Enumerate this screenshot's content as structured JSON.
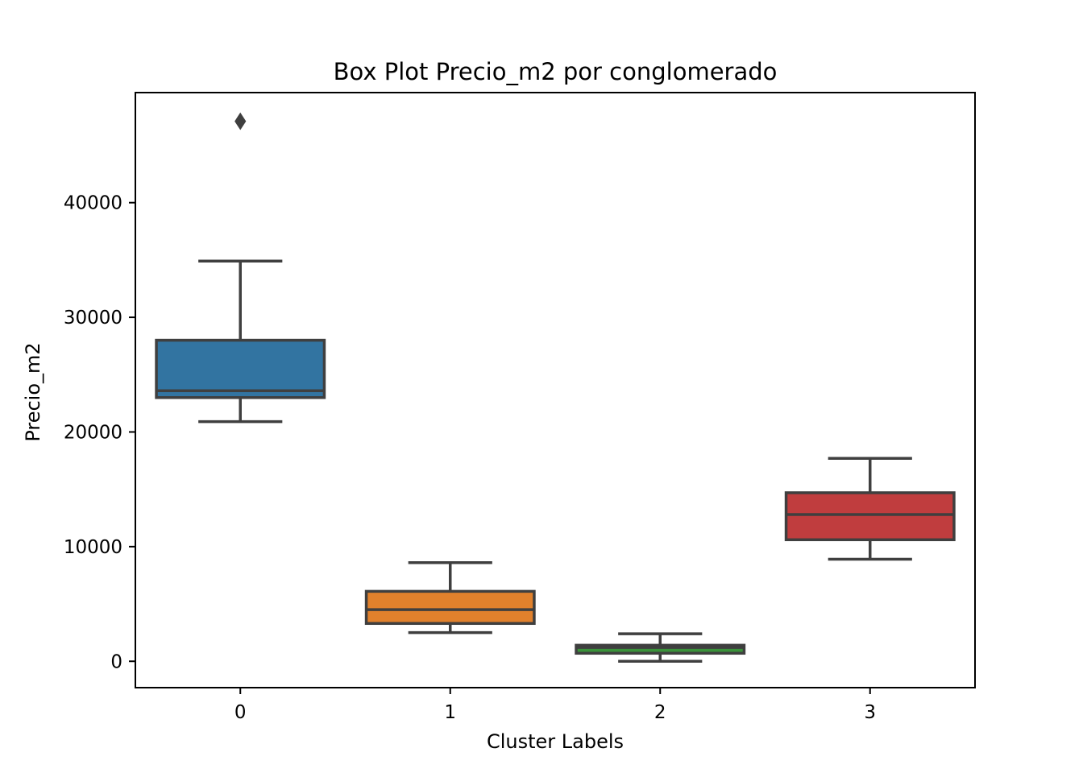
{
  "chart_data": {
    "type": "box",
    "title": "Box Plot Precio_m2 por conglomerado",
    "xlabel": "Cluster Labels",
    "ylabel": "Precio_m2",
    "categories": [
      "0",
      "1",
      "2",
      "3"
    ],
    "ylim": [
      -2300,
      49600
    ],
    "yticks": [
      {
        "value": 0,
        "label": "0"
      },
      {
        "value": 10000,
        "label": "10000"
      },
      {
        "value": 20000,
        "label": "20000"
      },
      {
        "value": 30000,
        "label": "30000"
      },
      {
        "value": 40000,
        "label": "40000"
      }
    ],
    "boxes": [
      {
        "category": "0",
        "whisker_low": 20900,
        "q1": 23000,
        "median": 23600,
        "q3": 28000,
        "whisker_high": 34900,
        "outliers": [
          47100
        ],
        "color": "#3274a1"
      },
      {
        "category": "1",
        "whisker_low": 2500,
        "q1": 3300,
        "median": 4500,
        "q3": 6100,
        "whisker_high": 8600,
        "outliers": [],
        "color": "#e1812c"
      },
      {
        "category": "2",
        "whisker_low": 0,
        "q1": 700,
        "median": 1200,
        "q3": 1400,
        "whisker_high": 2400,
        "outliers": [],
        "color": "#3a923a"
      },
      {
        "category": "3",
        "whisker_low": 8900,
        "q1": 10600,
        "median": 12800,
        "q3": 14700,
        "whisker_high": 17700,
        "outliers": [],
        "color": "#c03d3e"
      }
    ],
    "grid": false,
    "legend": "none"
  }
}
